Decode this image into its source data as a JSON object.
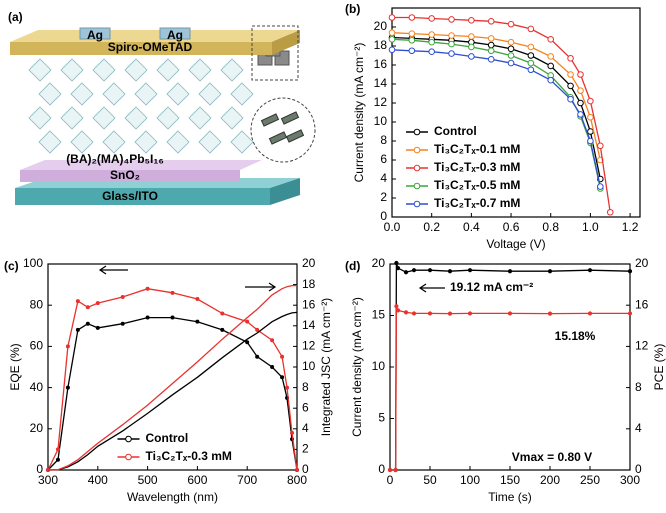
{
  "diagram": {
    "panel_label": "(a)",
    "electrode_left": "Ag",
    "electrode_right": "Ag",
    "htl": "Spiro-OMeTAD",
    "perovskite": "(BA)₂(MA)₄Pb₅I₁₆",
    "etl": "SnO₂",
    "substrate": "Glass/ITO"
  },
  "chart_data": [
    {
      "type": "line",
      "panel_label": "(b)",
      "xlabel": "Voltage (V)",
      "ylabel": "Current density (mA cm⁻²)",
      "x": [
        0,
        0.1,
        0.2,
        0.3,
        0.4,
        0.5,
        0.6,
        0.7,
        0.8,
        0.9,
        0.95,
        1.0,
        1.05,
        1.1
      ],
      "xlim": [
        0,
        1.25
      ],
      "xticks": [
        {
          "value": 0,
          "label": "0.0"
        },
        0.2,
        0.4,
        0.6,
        0.8,
        {
          "value": 1,
          "label": "1.0"
        },
        1.2
      ],
      "ylim": [
        0,
        22
      ],
      "yticks": [
        0,
        2,
        4,
        6,
        8,
        10,
        12,
        14,
        16,
        18,
        20
      ],
      "legend": "lower left",
      "markers": true,
      "series": [
        {
          "name": "Control",
          "color": "#000000",
          "values": [
            18.9,
            18.8,
            18.7,
            18.6,
            18.4,
            18.1,
            17.7,
            17.0,
            15.9,
            13.8,
            12.0,
            9.0,
            4.0,
            null
          ]
        },
        {
          "name": "Ti₃C₂Tₓ-0.1 mM",
          "color": "#f5821f",
          "values": [
            19.4,
            19.3,
            19.2,
            19.1,
            19.0,
            18.8,
            18.4,
            17.9,
            16.9,
            15.0,
            13.3,
            10.5,
            6.0,
            null
          ]
        },
        {
          "name": "Ti₃C₂Tₓ-0.3 mM",
          "color": "#e8322f",
          "values": [
            21.0,
            21.0,
            20.9,
            20.8,
            20.7,
            20.6,
            20.3,
            19.8,
            18.7,
            16.7,
            15.0,
            12.2,
            7.5,
            0.5
          ]
        },
        {
          "name": "Ti₃C₂Tₓ-0.5 mM",
          "color": "#3aa53a",
          "values": [
            18.7,
            18.6,
            18.4,
            18.2,
            17.9,
            17.5,
            17.0,
            16.2,
            14.9,
            12.6,
            10.6,
            7.8,
            3.0,
            null
          ]
        },
        {
          "name": "Ti₃C₂Tₓ-0.7 mM",
          "color": "#2d4fd1",
          "values": [
            17.6,
            17.5,
            17.4,
            17.2,
            16.9,
            16.6,
            16.2,
            15.5,
            14.4,
            12.4,
            10.8,
            8.0,
            3.2,
            null
          ]
        }
      ]
    },
    {
      "type": "line",
      "panel_label": "(c)",
      "xlabel": "Wavelength (nm)",
      "ylabel": "EQE (%)",
      "y2label": "Integrated JSC (mA cm⁻²)",
      "x": [
        300,
        320,
        340,
        360,
        380,
        400,
        450,
        500,
        550,
        600,
        650,
        700,
        720,
        750,
        770,
        780,
        790,
        800
      ],
      "xlim": [
        300,
        800
      ],
      "xticks": [
        300,
        400,
        500,
        600,
        700,
        800
      ],
      "ylim": [
        0,
        100
      ],
      "yticks": [
        0,
        20,
        40,
        60,
        80,
        100
      ],
      "y2lim": [
        0,
        20
      ],
      "y2ticks": [
        0,
        2,
        4,
        6,
        8,
        10,
        12,
        14,
        16,
        18,
        20
      ],
      "legend": "lower center",
      "markers": true,
      "series": [
        {
          "name": "Control",
          "color": "#000000",
          "values": [
            0,
            5,
            40,
            68,
            71,
            69,
            71,
            74,
            74,
            72,
            68,
            62,
            55,
            50,
            45,
            35,
            15,
            0
          ]
        },
        {
          "name": "Ti₃C₂Tₓ-0.3 mM",
          "color": "#e8322f",
          "values": [
            0,
            10,
            60,
            82,
            79,
            81,
            84,
            88,
            86,
            83,
            76,
            72,
            68,
            63,
            55,
            40,
            18,
            0
          ]
        },
        {
          "axis": "y2",
          "color": "#000000",
          "values": [
            0,
            0.02,
            0.3,
            0.8,
            1.5,
            2.3,
            3.8,
            5.5,
            7.3,
            9.0,
            10.9,
            12.7,
            13.3,
            14.4,
            14.9,
            15.1,
            15.25,
            15.3
          ]
        },
        {
          "axis": "y2",
          "color": "#e8322f",
          "values": [
            0,
            0.03,
            0.4,
            1.0,
            1.8,
            2.6,
            4.4,
            6.3,
            8.4,
            10.5,
            12.7,
            14.8,
            15.6,
            17.0,
            17.6,
            17.8,
            17.9,
            17.9
          ]
        }
      ]
    },
    {
      "type": "line",
      "panel_label": "(d)",
      "xlabel": "Time (s)",
      "ylabel": "Current density (mA cm⁻²)",
      "y2label": "PCE (%)",
      "x": [
        0,
        7,
        8,
        10,
        20,
        30,
        50,
        75,
        100,
        150,
        200,
        250,
        300
      ],
      "xlim": [
        0,
        300
      ],
      "xticks": [
        0,
        50,
        100,
        150,
        200,
        250,
        300
      ],
      "ylim": [
        0,
        20
      ],
      "yticks": [
        0,
        5,
        10,
        15,
        20
      ],
      "y2lim": [
        0,
        20
      ],
      "y2ticks": [
        0,
        4,
        8,
        12,
        16,
        20
      ],
      "markers": true,
      "annotations": [
        "19.12 mA cm⁻²",
        "15.18%",
        "Vmax = 0.80 V"
      ],
      "series": [
        {
          "color": "#000000",
          "values": [
            0,
            0,
            20.1,
            19.6,
            19.2,
            19.4,
            19.4,
            19.3,
            19.4,
            19.3,
            19.3,
            19.4,
            19.3
          ]
        },
        {
          "axis": "y2",
          "color": "#e8322f",
          "values": [
            0,
            0,
            15.9,
            15.5,
            15.3,
            15.2,
            15.2,
            15.18,
            15.2,
            15.2,
            15.18,
            15.2,
            15.2
          ]
        }
      ]
    }
  ]
}
